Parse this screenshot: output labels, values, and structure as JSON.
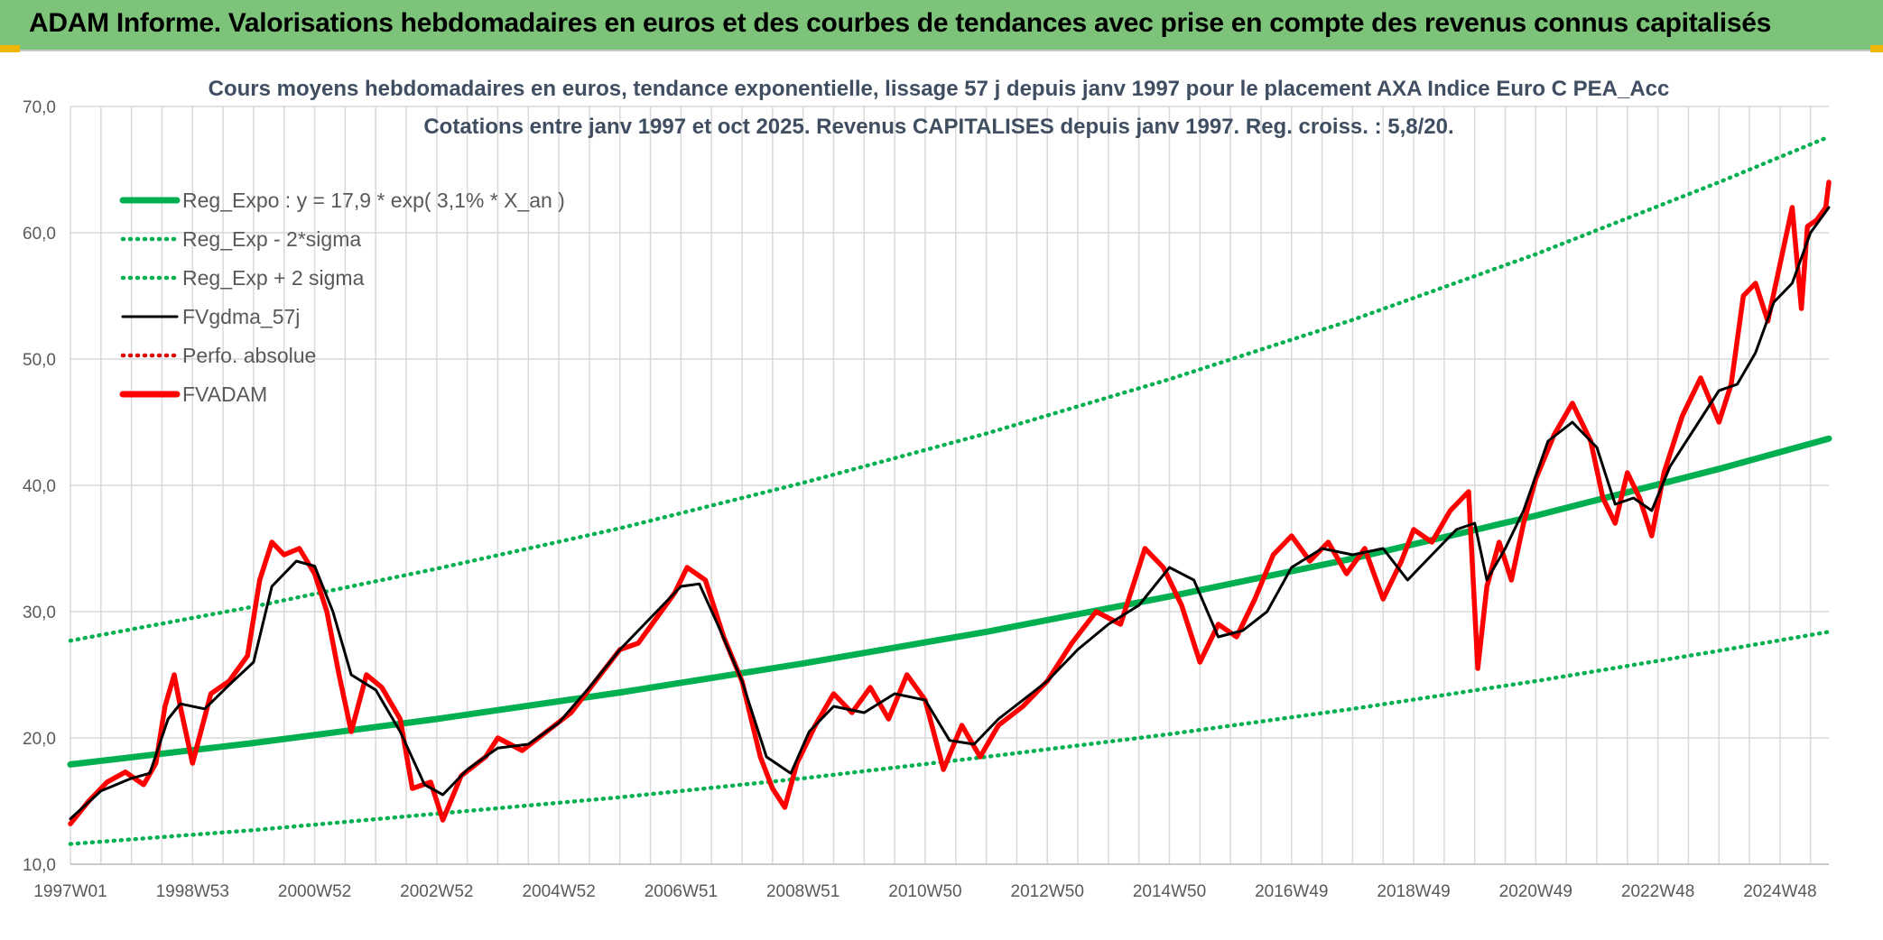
{
  "header": {
    "title": "ADAM Informe. Valorisations hebdomadaires en euros et des courbes de tendances avec prise en compte des revenus connus capitalisés"
  },
  "chart_data": {
    "type": "line",
    "title_lines": [
      "Cours moyens hebdomadaires en euros, tendance exponentielle, lissage 57 j depuis janv 1997 pour le placement AXA Indice Euro C PEA_Acc",
      "Cotations entre janv 1997 et oct 2025. Revenus CAPITALISES depuis janv 1997. Reg. croiss. : 5,8/20."
    ],
    "xlabel": "",
    "ylabel": "",
    "x_range": [
      1997.0,
      2025.8
    ],
    "ylim": [
      10,
      70
    ],
    "y_ticks": [
      10,
      20,
      30,
      40,
      50,
      60,
      70
    ],
    "y_tick_labels": [
      "10,0",
      "20,0",
      "30,0",
      "40,0",
      "50,0",
      "60,0",
      "70,0"
    ],
    "x_ticks": [
      1997.0,
      1999.0,
      2001.0,
      2003.0,
      2005.0,
      2007.0,
      2009.0,
      2011.0,
      2013.0,
      2015.0,
      2017.0,
      2019.0,
      2021.0,
      2023.0,
      2025.0
    ],
    "x_tick_labels": [
      "1997W01",
      "1998W53",
      "2000W52",
      "2002W52",
      "2004W52",
      "2006W51",
      "2008W51",
      "2010W50",
      "2012W50",
      "2014W50",
      "2016W49",
      "2018W49",
      "2020W49",
      "2022W48",
      "2024W48"
    ],
    "grid": true,
    "legend_position": "top-left",
    "legend": [
      {
        "label": "Reg_Expo : y = 17,9 * exp( 3,1% *  X_an )",
        "color": "#00b050",
        "style": "solid-thick"
      },
      {
        "label": "Reg_Exp - 2*sigma",
        "color": "#00b050",
        "style": "dotted"
      },
      {
        "label": "Reg_Exp + 2 sigma",
        "color": "#00b050",
        "style": "dotted"
      },
      {
        "label": "FVgdma_57j",
        "color": "#000000",
        "style": "solid"
      },
      {
        "label": "Perfo. absolue",
        "color": "#e00000",
        "style": "dotted"
      },
      {
        "label": "FVADAM",
        "color": "#ff0000",
        "style": "solid-thick"
      }
    ],
    "series": [
      {
        "name": "Reg_Expo : y = 17,9 * exp( 3,1% *  X_an )",
        "x": [
          1997.0,
          2000.0,
          2003.0,
          2006.0,
          2009.0,
          2012.0,
          2015.0,
          2018.0,
          2021.0,
          2024.0,
          2025.8
        ],
        "y": [
          17.9,
          19.6,
          21.5,
          23.6,
          25.9,
          28.4,
          31.2,
          34.2,
          37.6,
          41.3,
          43.7
        ]
      },
      {
        "name": "Reg_Exp - 2*sigma",
        "x": [
          1997.0,
          2000.0,
          2003.0,
          2006.0,
          2009.0,
          2012.0,
          2015.0,
          2018.0,
          2021.0,
          2024.0,
          2025.8
        ],
        "y": [
          11.6,
          12.7,
          14.0,
          15.3,
          16.8,
          18.5,
          20.3,
          22.3,
          24.5,
          26.9,
          28.4
        ]
      },
      {
        "name": "Reg_Exp + 2 sigma",
        "x": [
          1997.0,
          2000.0,
          2003.0,
          2006.0,
          2009.0,
          2012.0,
          2015.0,
          2018.0,
          2021.0,
          2024.0,
          2025.8
        ],
        "y": [
          27.7,
          30.4,
          33.4,
          36.6,
          40.2,
          44.1,
          48.4,
          53.1,
          58.3,
          64.0,
          67.6
        ]
      },
      {
        "name": "FVgdma_57j",
        "x": [
          1997.0,
          1997.5,
          1998.0,
          1998.3,
          1998.6,
          1998.8,
          1999.2,
          1999.6,
          2000.0,
          2000.3,
          2000.7,
          2001.0,
          2001.3,
          2001.6,
          2002.0,
          2002.4,
          2002.8,
          2003.1,
          2003.5,
          2004.0,
          2004.5,
          2005.0,
          2005.5,
          2006.0,
          2006.5,
          2007.0,
          2007.3,
          2007.6,
          2008.0,
          2008.4,
          2008.8,
          2009.1,
          2009.5,
          2010.0,
          2010.5,
          2011.0,
          2011.4,
          2011.8,
          2012.2,
          2012.6,
          2013.0,
          2013.5,
          2014.0,
          2014.5,
          2015.0,
          2015.4,
          2015.8,
          2016.2,
          2016.6,
          2017.0,
          2017.5,
          2018.0,
          2018.5,
          2018.9,
          2019.3,
          2019.7,
          2020.0,
          2020.2,
          2020.5,
          2020.8,
          2021.2,
          2021.6,
          2022.0,
          2022.3,
          2022.6,
          2022.9,
          2023.2,
          2023.6,
          2024.0,
          2024.3,
          2024.6,
          2024.9,
          2025.2,
          2025.5,
          2025.8
        ],
        "y": [
          13.6,
          15.8,
          16.8,
          17.2,
          21.5,
          22.7,
          22.3,
          24.2,
          26.0,
          32.0,
          34.0,
          33.6,
          30.0,
          25.0,
          23.8,
          20.5,
          16.3,
          15.5,
          17.5,
          19.2,
          19.5,
          21.2,
          24.0,
          27.0,
          29.5,
          32.0,
          32.2,
          29.0,
          24.5,
          18.5,
          17.2,
          20.5,
          22.5,
          22.0,
          23.5,
          23.0,
          19.8,
          19.5,
          21.5,
          23.0,
          24.5,
          27.0,
          29.0,
          30.5,
          33.5,
          32.5,
          28.0,
          28.5,
          30.0,
          33.5,
          35.0,
          34.5,
          35.0,
          32.5,
          34.5,
          36.5,
          37.0,
          32.5,
          35.0,
          38.0,
          43.5,
          45.0,
          43.0,
          38.5,
          39.0,
          38.0,
          41.5,
          44.5,
          47.5,
          48.0,
          50.5,
          54.5,
          56.0,
          60.0,
          62.0
        ]
      },
      {
        "name": "FVADAM",
        "x": [
          1997.0,
          1997.3,
          1997.6,
          1997.9,
          1998.2,
          1998.4,
          1998.55,
          1998.7,
          1998.8,
          1999.0,
          1999.3,
          1999.6,
          1999.9,
          2000.1,
          2000.3,
          2000.5,
          2000.75,
          2001.0,
          2001.2,
          2001.4,
          2001.6,
          2001.85,
          2002.1,
          2002.4,
          2002.6,
          2002.9,
          2003.1,
          2003.4,
          2003.8,
          2004.0,
          2004.4,
          2004.8,
          2005.2,
          2005.6,
          2006.0,
          2006.3,
          2006.6,
          2006.9,
          2007.1,
          2007.4,
          2007.7,
          2008.0,
          2008.3,
          2008.5,
          2008.7,
          2008.9,
          2009.2,
          2009.5,
          2009.8,
          2010.1,
          2010.4,
          2010.7,
          2011.0,
          2011.3,
          2011.6,
          2011.9,
          2012.2,
          2012.6,
          2013.0,
          2013.4,
          2013.8,
          2014.2,
          2014.6,
          2014.9,
          2015.2,
          2015.5,
          2015.8,
          2016.1,
          2016.4,
          2016.7,
          2017.0,
          2017.3,
          2017.6,
          2017.9,
          2018.2,
          2018.5,
          2018.8,
          2019.0,
          2019.3,
          2019.6,
          2019.9,
          2020.05,
          2020.2,
          2020.4,
          2020.6,
          2020.8,
          2021.0,
          2021.3,
          2021.6,
          2021.9,
          2022.1,
          2022.3,
          2022.5,
          2022.7,
          2022.9,
          2023.1,
          2023.4,
          2023.7,
          2024.0,
          2024.2,
          2024.4,
          2024.6,
          2024.8,
          2025.0,
          2025.2,
          2025.35,
          2025.45,
          2025.6,
          2025.75,
          2025.8
        ],
        "y": [
          13.2,
          15.0,
          16.5,
          17.3,
          16.3,
          18.0,
          22.5,
          25.0,
          22.5,
          18.0,
          23.5,
          24.5,
          26.5,
          32.5,
          35.5,
          34.5,
          35.0,
          33.0,
          30.0,
          25.0,
          20.5,
          25.0,
          24.0,
          21.5,
          16.0,
          16.5,
          13.5,
          17.0,
          18.5,
          20.0,
          19.0,
          20.5,
          22.0,
          24.5,
          27.0,
          27.5,
          29.5,
          31.5,
          33.5,
          32.5,
          28.0,
          24.5,
          18.5,
          16.0,
          14.5,
          18.0,
          21.0,
          23.5,
          22.0,
          24.0,
          21.5,
          25.0,
          23.0,
          17.5,
          21.0,
          18.5,
          21.0,
          22.5,
          24.5,
          27.5,
          30.0,
          29.0,
          35.0,
          33.5,
          30.5,
          26.0,
          29.0,
          28.0,
          31.0,
          34.5,
          36.0,
          34.0,
          35.5,
          33.0,
          35.0,
          31.0,
          34.0,
          36.5,
          35.5,
          38.0,
          39.5,
          25.5,
          32.0,
          35.5,
          32.5,
          37.0,
          40.5,
          44.0,
          46.5,
          43.5,
          39.0,
          37.0,
          41.0,
          39.0,
          36.0,
          41.0,
          45.5,
          48.5,
          45.0,
          48.0,
          55.0,
          56.0,
          53.0,
          57.5,
          62.0,
          54.0,
          60.5,
          61.0,
          62.0,
          64.0
        ]
      }
    ]
  }
}
